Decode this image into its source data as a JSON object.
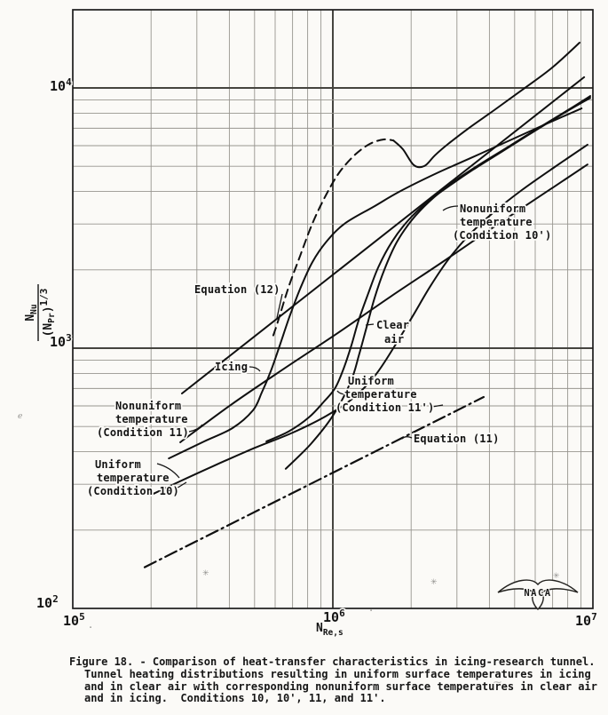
{
  "colors": {
    "ink": "#141414",
    "paper": "#fbfaf7"
  },
  "plot": {
    "yticks": [
      {
        "b": "10",
        "e": "4"
      },
      {
        "b": "10",
        "e": "3"
      },
      {
        "b": "10",
        "e": "2"
      }
    ],
    "xticks": [
      {
        "b": "10",
        "e": "5"
      },
      {
        "b": "10",
        "e": "6"
      },
      {
        "b": "10",
        "e": "7"
      }
    ]
  },
  "axis": {
    "y": {
      "num": "N",
      "num_sub": "Nu",
      "den": "(N",
      "den_sub": "Pr",
      "den_close": ")",
      "den_exp": "1/3"
    },
    "x": {
      "main": "N",
      "sub": "Re,s"
    }
  },
  "labels": {
    "eq12": [
      "Equation (12)"
    ],
    "icing": [
      "Icing"
    ],
    "clear": [
      "Clear",
      "air"
    ],
    "u11p": [
      "Uniform",
      "temperature",
      "(Condition 11')"
    ],
    "n11": [
      "Nonuniform",
      "temperature",
      "(Condition 11)"
    ],
    "u10": [
      "Uniform",
      "temperature",
      "(Condition 10)"
    ],
    "n10p": [
      "Nonuniform",
      "temperature",
      "(Condition 10')"
    ],
    "eq11": [
      "Equation (11)"
    ]
  },
  "emblem": {
    "text": "NACA"
  },
  "caption": {
    "lines": [
      "Figure 18. - Comparison of heat-transfer characteristics in icing-research tunnel.",
      "Tunnel heating distributions resulting in uniform surface temperatures in icing",
      "and in clear air with corresponding nonuniform surface temperatures in clear air",
      "and in icing.  Conditions 10, 10', 11, and 11'."
    ]
  },
  "artifacts": {
    "specks": [
      "✳",
      "✳",
      "✳",
      "·",
      "ℯ",
      "⁓",
      "·"
    ]
  },
  "chart_data": {
    "type": "line",
    "scale": "log-log",
    "title": "Comparison of heat-transfer characteristics in icing-research tunnel",
    "xlabel": "N_Re,s",
    "ylabel": "N_Nu/(N_Pr)^1/3",
    "xlim": [
      100000,
      10000000
    ],
    "ylim": [
      100,
      20000
    ],
    "grid": true,
    "legend_position": "inline-labels",
    "series": [
      {
        "name": "Equation (11)",
        "style": "dashdot",
        "segments": [
          {
            "style": "dashdot",
            "points": [
              [
                189000,
                144
              ],
              [
                3800000,
                649
              ]
            ]
          }
        ]
      },
      {
        "name": "Equation (12)",
        "style": "solid",
        "segments": [
          {
            "style": "solid",
            "points": [
              [
                263000,
                670
              ],
              [
                9250000,
                11000
              ]
            ]
          }
        ]
      },
      {
        "name": "Uniform temperature (Condition 10)",
        "style": "solid",
        "segments": [
          {
            "style": "solid",
            "points": [
              [
                200000,
                273
              ],
              [
                253000,
                305
              ],
              [
                346000,
                352
              ],
              [
                493000,
                411
              ],
              [
                702000,
                474
              ],
              [
                946000,
                550
              ],
              [
                1200000,
                644
              ],
              [
                1460000,
                790
              ],
              [
                1730000,
                1020
              ],
              [
                2030000,
                1330
              ],
              [
                2370000,
                1730
              ],
              [
                2780000,
                2190
              ],
              [
                3330000,
                2710
              ],
              [
                4110000,
                3300
              ],
              [
                5330000,
                4050
              ],
              [
                7130000,
                4970
              ],
              [
                9530000,
                6050
              ]
            ]
          }
        ]
      },
      {
        "name": "Nonuniform temperature (Condition 11)",
        "style": "solid",
        "segments": [
          {
            "style": "solid",
            "points": [
              [
                259000,
                435
              ],
              [
                405000,
                605
              ],
              [
                649000,
                834
              ],
              [
                1040000,
                1140
              ],
              [
                1670000,
                1580
              ],
              [
                2670000,
                2160
              ],
              [
                4280000,
                2980
              ],
              [
                6860000,
                4080
              ],
              [
                9530000,
                5080
              ]
            ]
          }
        ]
      },
      {
        "name": "Icing",
        "style": "solid",
        "segments": [
          {
            "style": "solid",
            "points": [
              [
                234000,
                377
              ],
              [
                320000,
                438
              ],
              [
                411000,
                493
              ],
              [
                493000,
                577
              ],
              [
                533000,
                675
              ],
              [
                577000,
                815
              ],
              [
                624000,
                1020
              ],
              [
                681000,
                1320
              ],
              [
                748000,
                1690
              ],
              [
                834000,
                2140
              ],
              [
                946000,
                2570
              ],
              [
                1110000,
                3010
              ],
              [
                1430000,
                3490
              ],
              [
                1800000,
                3990
              ],
              [
                2470000,
                4670
              ],
              [
                3380000,
                5370
              ],
              [
                4630000,
                6190
              ],
              [
                6440000,
                7190
              ],
              [
                9040000,
                8340
              ]
            ]
          }
        ]
      },
      {
        "name": "Clear air",
        "style": "solid",
        "segments": [
          {
            "style": "solid",
            "points": [
              [
                659000,
                344
              ],
              [
                822000,
                428
              ],
              [
                1000000,
                550
              ],
              [
                1170000,
                741
              ],
              [
                1260000,
                940
              ],
              [
                1350000,
                1210
              ],
              [
                1450000,
                1570
              ],
              [
                1580000,
                2010
              ],
              [
                1760000,
                2550
              ],
              [
                2010000,
                3100
              ],
              [
                2350000,
                3660
              ],
              [
                2840000,
                4280
              ],
              [
                3540000,
                4970
              ],
              [
                4560000,
                5810
              ],
              [
                6040000,
                6920
              ],
              [
                8020000,
                8220
              ],
              [
                9770000,
                9310
              ]
            ]
          }
        ]
      },
      {
        "name": "Uniform temperature (Condition 11')",
        "style": "solid",
        "segments": [
          {
            "style": "solid",
            "points": [
              [
                555000,
                438
              ],
              [
                675000,
                478
              ],
              [
                809000,
                542
              ],
              [
                925000,
                624
              ],
              [
                1020000,
                702
              ],
              [
                1100000,
                834
              ],
              [
                1180000,
                1030
              ],
              [
                1260000,
                1290
              ],
              [
                1370000,
                1630
              ],
              [
                1500000,
                2060
              ],
              [
                1690000,
                2570
              ],
              [
                1950000,
                3100
              ],
              [
                2300000,
                3630
              ],
              [
                2780000,
                4180
              ],
              [
                3460000,
                4850
              ],
              [
                4450000,
                5680
              ],
              [
                5860000,
                6750
              ],
              [
                7780000,
                8030
              ],
              [
                9770000,
                9160
              ]
            ]
          }
        ]
      },
      {
        "name": "Nonuniform temperature (Condition 10')",
        "style": "dashed-then-solid",
        "segments": [
          {
            "style": "dashed",
            "points": [
              [
                590000,
                1120
              ],
              [
                614000,
                1260
              ],
              [
                675000,
                1710
              ],
              [
                748000,
                2260
              ],
              [
                834000,
                3010
              ],
              [
                939000,
                3860
              ],
              [
                1060000,
                4740
              ],
              [
                1220000,
                5550
              ],
              [
                1390000,
                6100
              ],
              [
                1570000,
                6340
              ],
              [
                1710000,
                6280
              ]
            ]
          },
          {
            "style": "solid",
            "points": [
              [
                1710000,
                6280
              ],
              [
                1860000,
                5810
              ],
              [
                2050000,
                5050
              ],
              [
                2250000,
                5010
              ],
              [
                2470000,
                5510
              ],
              [
                2780000,
                6100
              ],
              [
                3380000,
                7080
              ],
              [
                4220000,
                8280
              ],
              [
                5420000,
                9930
              ],
              [
                6970000,
                11970
              ],
              [
                8890000,
                14930
              ]
            ]
          }
        ]
      }
    ]
  }
}
